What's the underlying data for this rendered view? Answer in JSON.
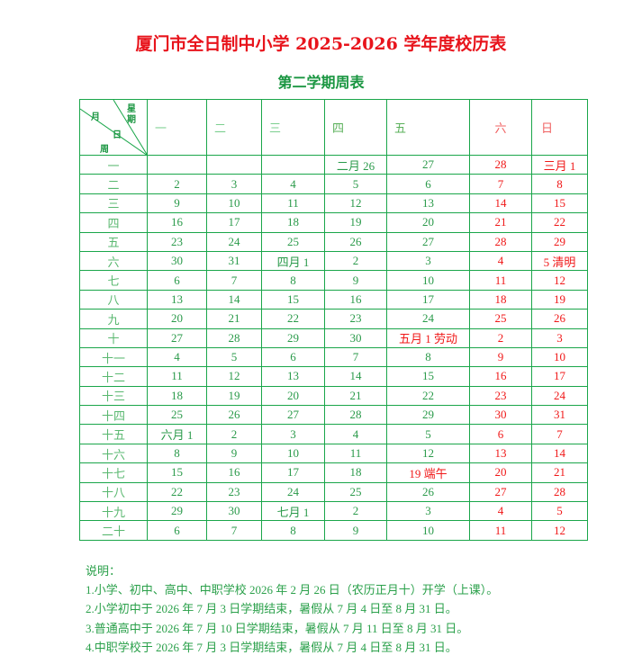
{
  "title": "厦门市全日制中小学 2025-2026 学年度校历表",
  "subtitle": "第二学期周表",
  "corner": {
    "month": "月",
    "weekday": "星期",
    "day": "日",
    "week": "周"
  },
  "weekdays": [
    "一",
    "二",
    "三",
    "四",
    "五",
    "六",
    "日"
  ],
  "colors": {
    "title": "#e8141c",
    "text": "#2a9a4a",
    "weekend": "#f01818",
    "border": "#1aa64a"
  },
  "rows": [
    {
      "week": "一",
      "days": [
        "",
        "",
        "",
        "二月 26",
        "27",
        "28",
        "三月 1"
      ]
    },
    {
      "week": "二",
      "days": [
        "2",
        "3",
        "4",
        "5",
        "6",
        "7",
        "8"
      ]
    },
    {
      "week": "三",
      "days": [
        "9",
        "10",
        "11",
        "12",
        "13",
        "14",
        "15"
      ]
    },
    {
      "week": "四",
      "days": [
        "16",
        "17",
        "18",
        "19",
        "20",
        "21",
        "22"
      ]
    },
    {
      "week": "五",
      "days": [
        "23",
        "24",
        "25",
        "26",
        "27",
        "28",
        "29"
      ]
    },
    {
      "week": "六",
      "days": [
        "30",
        "31",
        "四月 1",
        "2",
        "3",
        "4",
        "5 清明"
      ]
    },
    {
      "week": "七",
      "days": [
        "6",
        "7",
        "8",
        "9",
        "10",
        "11",
        "12"
      ]
    },
    {
      "week": "八",
      "days": [
        "13",
        "14",
        "15",
        "16",
        "17",
        "18",
        "19"
      ]
    },
    {
      "week": "九",
      "days": [
        "20",
        "21",
        "22",
        "23",
        "24",
        "25",
        "26"
      ]
    },
    {
      "week": "十",
      "days": [
        "27",
        "28",
        "29",
        "30",
        "五月 1 劳动",
        "2",
        "3"
      ],
      "holiday": [
        4
      ]
    },
    {
      "week": "十一",
      "days": [
        "4",
        "5",
        "6",
        "7",
        "8",
        "9",
        "10"
      ]
    },
    {
      "week": "十二",
      "days": [
        "11",
        "12",
        "13",
        "14",
        "15",
        "16",
        "17"
      ]
    },
    {
      "week": "十三",
      "days": [
        "18",
        "19",
        "20",
        "21",
        "22",
        "23",
        "24"
      ]
    },
    {
      "week": "十四",
      "days": [
        "25",
        "26",
        "27",
        "28",
        "29",
        "30",
        "31"
      ]
    },
    {
      "week": "十五",
      "days": [
        "六月 1",
        "2",
        "3",
        "4",
        "5",
        "6",
        "7"
      ]
    },
    {
      "week": "十六",
      "days": [
        "8",
        "9",
        "10",
        "11",
        "12",
        "13",
        "14"
      ]
    },
    {
      "week": "十七",
      "days": [
        "15",
        "16",
        "17",
        "18",
        "19 端午",
        "20",
        "21"
      ],
      "holiday": [
        4
      ]
    },
    {
      "week": "十八",
      "days": [
        "22",
        "23",
        "24",
        "25",
        "26",
        "27",
        "28"
      ]
    },
    {
      "week": "十九",
      "days": [
        "29",
        "30",
        "七月 1",
        "2",
        "3",
        "4",
        "5"
      ]
    },
    {
      "week": "二十",
      "days": [
        "6",
        "7",
        "8",
        "9",
        "10",
        "11",
        "12"
      ]
    }
  ],
  "notes": {
    "heading": "说明：",
    "items": [
      "1.小学、初中、高中、中职学校 2026 年 2 月 26 日（农历正月十）开学（上课）。",
      "2.小学初中于 2026 年 7 月 3 日学期结束，暑假从 7 月 4 日至 8 月 31 日。",
      "3.普通高中于 2026 年 7 月 10 日学期结束，暑假从 7 月 11 日至 8 月 31 日。",
      "4.中职学校于 2026 年 7 月 3 日学期结束，暑假从 7 月 4 日至 8 月 31 日。"
    ]
  }
}
